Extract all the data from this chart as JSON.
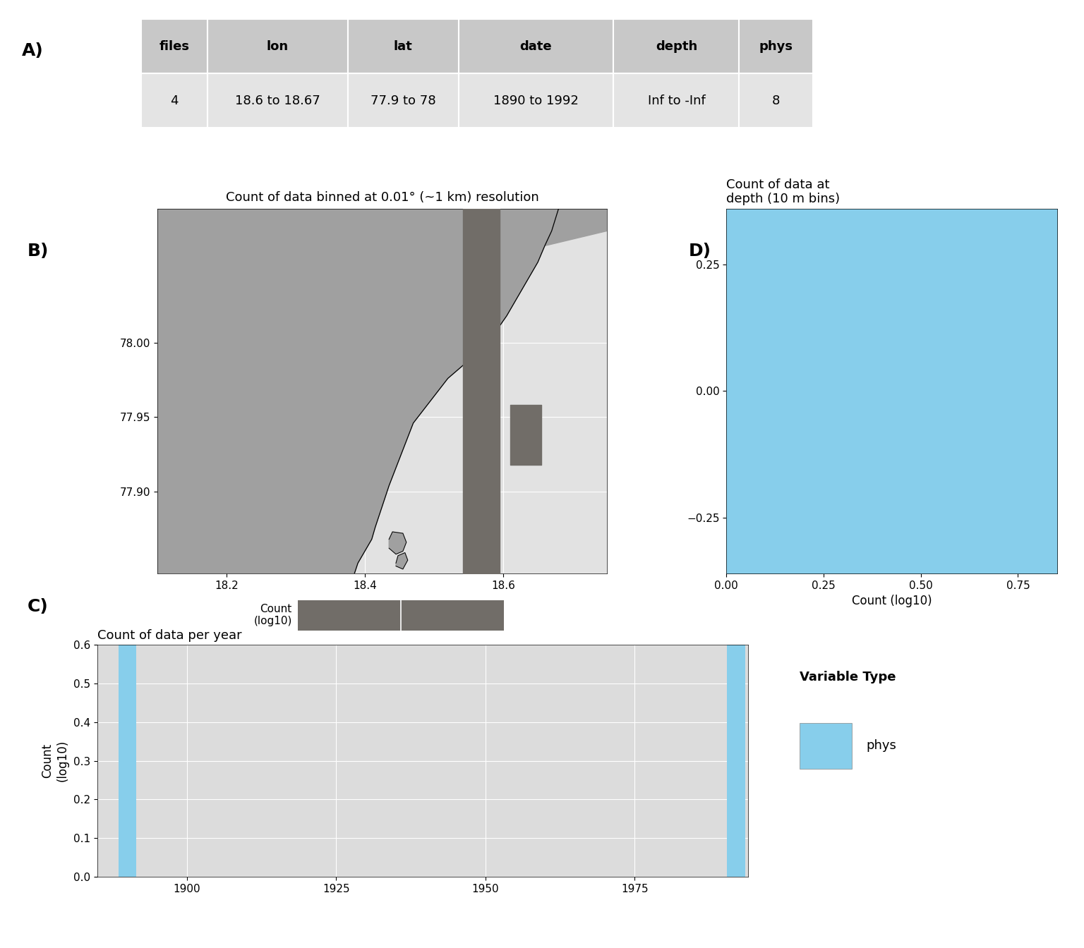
{
  "table_headers": [
    "files",
    "lon",
    "lat",
    "date",
    "depth",
    "phys"
  ],
  "table_values": [
    "4",
    "18.6 to 18.67",
    "77.9 to 78",
    "1890 to 1992",
    "Inf to -Inf",
    "8"
  ],
  "map_title": "Count of data binned at 0.01° (~1 km) resolution",
  "map_xlim": [
    18.1,
    18.75
  ],
  "map_ylim": [
    77.845,
    78.09
  ],
  "map_xticks": [
    18.2,
    18.4,
    18.6
  ],
  "map_yticks": [
    77.9,
    77.95,
    78.0
  ],
  "map_land_color": "#a0a0a0",
  "map_sea_color": "#e2e2e2",
  "map_data_color": "#716d68",
  "colorbar_value": "0.60206",
  "depth_title": "Count of data at\ndepth (10 m bins)",
  "depth_xlim": [
    0.0,
    0.85
  ],
  "depth_ylim": [
    -0.36,
    0.36
  ],
  "depth_xticks": [
    0.0,
    0.25,
    0.5,
    0.75
  ],
  "depth_yticks": [
    -0.25,
    0.0,
    0.25
  ],
  "depth_bar_color": "#87CEEB",
  "temporal_title": "Count of data per year",
  "temporal_xlim": [
    1885,
    1994
  ],
  "temporal_ylim": [
    0.0,
    0.6
  ],
  "temporal_xticks": [
    1900,
    1925,
    1950,
    1975
  ],
  "temporal_yticks": [
    0.0,
    0.1,
    0.2,
    0.3,
    0.4,
    0.5,
    0.6
  ],
  "temporal_ylabel": "Count\n(log10)",
  "temporal_bar_color": "#87CEEB",
  "temporal_bar_year": 1890,
  "temporal_bar_value": 0.60206,
  "background_color": "#dcdcdc",
  "phys_color": "#87CEEB",
  "legend_title": "Variable Type",
  "legend_label": "phys",
  "panel_fontsize": 18,
  "axis_fontsize": 12,
  "tick_fontsize": 11,
  "title_fontsize": 13,
  "table_header_bg": "#c8c8c8",
  "table_row_bg": "#e4e4e4"
}
